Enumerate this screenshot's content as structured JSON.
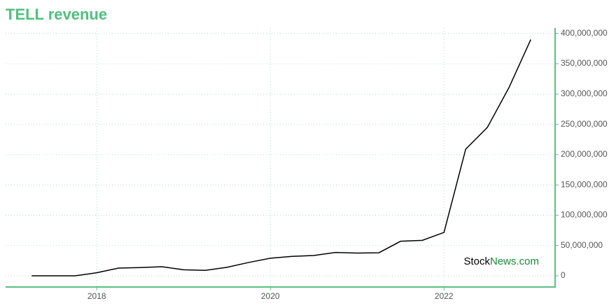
{
  "chart_data": {
    "type": "line",
    "title": "TELL revenue",
    "x": [
      2017.25,
      2017.5,
      2017.75,
      2018.0,
      2018.25,
      2018.5,
      2018.75,
      2019.0,
      2019.25,
      2019.5,
      2019.75,
      2020.0,
      2020.25,
      2020.5,
      2020.75,
      2021.0,
      2021.25,
      2021.5,
      2021.75,
      2022.0,
      2022.25,
      2022.5,
      2022.75,
      2023.0
    ],
    "values": [
      0,
      0,
      0,
      5000000,
      12700000,
      13500000,
      15000000,
      10000000,
      9000000,
      14000000,
      22000000,
      29000000,
      32000000,
      33500000,
      38500000,
      37500000,
      38000000,
      57000000,
      58500000,
      71500000,
      209000000,
      245000000,
      311000000,
      390000000
    ],
    "color": "#000000",
    "xlim": [
      2016.95,
      2023.28
    ],
    "xticks": [
      2018,
      2020,
      2022
    ],
    "ylim": [
      -18500000,
      409000000
    ],
    "yticks": [
      {
        "value": 0,
        "label": "0"
      },
      {
        "value": 50000000,
        "label": "50,000,000"
      },
      {
        "value": 100000000,
        "label": "100,000,000"
      },
      {
        "value": 150000000,
        "label": "150,000,000"
      },
      {
        "value": 200000000,
        "label": "200,000,000"
      },
      {
        "value": 250000000,
        "label": "250,000,000"
      },
      {
        "value": 300000000,
        "label": "300,000,000"
      },
      {
        "value": 350000000,
        "label": "350,000,000"
      },
      {
        "value": 400000000,
        "label": "400,000,000"
      }
    ],
    "grid": true,
    "axis_color": "#5dbf85",
    "watermark": {
      "prefix": "Stock",
      "suffix": "News.com"
    }
  }
}
